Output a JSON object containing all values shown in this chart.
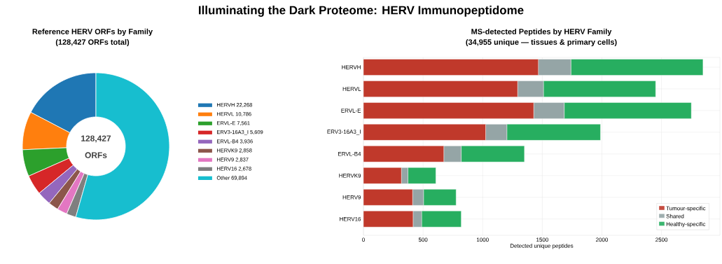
{
  "chart_data": [
    {
      "type": "donut",
      "title": "Reference HERV ORFs by Family",
      "subtitle": "(128,427 ORFs total)",
      "annotations": [
        "Illuminating the Dark Proteome: HERV Immunopeptidome",
        "128,427",
        "ORFs"
      ],
      "categories": [
        "HERVH  22,268",
        "HERVL  10,786",
        "ERVL-E  7,561",
        "ERV3-16A3_I  5,609",
        "ERVL-B4  3,936",
        "HERVK9  2,858",
        "HERV9  2,837",
        "HERV16  2,678",
        "Other  69,894"
      ],
      "values": [
        22268,
        10786,
        7561,
        5609,
        3936,
        2858,
        2837,
        2678,
        69894
      ],
      "colors": [
        "#1f77b4",
        "#ff7f0e",
        "#2ca02c",
        "#d62728",
        "#9467bd",
        "#8c564b",
        "#e377c2",
        "#7f7f7f",
        "#17becf"
      ],
      "legend": "right"
    },
    {
      "type": "bar",
      "orientation": "horizontal",
      "stacked": true,
      "title": "MS-detected Peptides by HERV Family",
      "subtitle": "(34,955 unique — tissues & primary cells)",
      "xlabel": "Detected unique peptides",
      "categories": [
        "HERVH",
        "HERVL",
        "ERVL-E",
        "ERV3-16A3_I",
        "ERVL-B4",
        "HERVK9",
        "HERV9",
        "HERV16"
      ],
      "series": [
        {
          "name": "Tumour-specific",
          "color": "#c0392b",
          "values": [
            1467,
            1293,
            1428,
            1025,
            674,
            318,
            412,
            416
          ]
        },
        {
          "name": "Shared",
          "color": "#95a5a6",
          "values": [
            273,
            217,
            256,
            178,
            146,
            55,
            92,
            72
          ]
        },
        {
          "name": "Healthy-specific",
          "color": "#27ae60",
          "values": [
            1108,
            941,
            1066,
            785,
            530,
            234,
            273,
            332
          ]
        }
      ],
      "xlim": [
        0,
        2990
      ],
      "xticks": [
        0,
        500,
        1000,
        1500,
        2000,
        2500
      ],
      "grid": true,
      "legend": "bottom right"
    }
  ]
}
